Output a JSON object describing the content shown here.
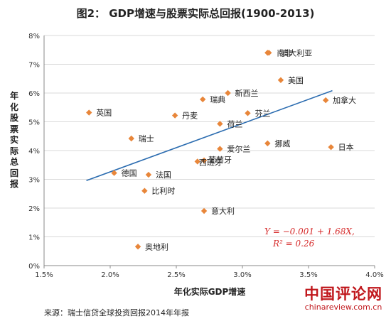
{
  "page": {
    "title": "图2： GDP增速与股票实际总回报(1900-2013)",
    "source": "来源：瑞士信贷全球投资回报2014年年报",
    "watermark_main": "中国评论网",
    "watermark_sub": "chinareview.com.cn"
  },
  "chart_data": {
    "type": "scatter",
    "title": "图2： GDP增速与股票实际总回报(1900-2013)",
    "xlabel": "年化实际GDP增速",
    "ylabel": "年化股票实际总回报",
    "xlim": [
      0.015,
      0.04
    ],
    "ylim": [
      0,
      0.08
    ],
    "x_ticks": [
      "1.5%",
      "2.0%",
      "2.5%",
      "3.0%",
      "3.5%",
      "4.0%"
    ],
    "y_ticks": [
      "0%",
      "1%",
      "2%",
      "3%",
      "4%",
      "5%",
      "6%",
      "7%",
      "8%"
    ],
    "points": [
      {
        "label": "南非",
        "x": 0.0319,
        "y": 0.074
      },
      {
        "label": "澳大利亚",
        "x": 0.032,
        "y": 0.074
      },
      {
        "label": "美国",
        "x": 0.0329,
        "y": 0.0645
      },
      {
        "label": "加拿大",
        "x": 0.0363,
        "y": 0.0575
      },
      {
        "label": "新西兰",
        "x": 0.0289,
        "y": 0.06
      },
      {
        "label": "瑞典",
        "x": 0.027,
        "y": 0.0578
      },
      {
        "label": "芬兰",
        "x": 0.0304,
        "y": 0.053
      },
      {
        "label": "英国",
        "x": 0.0184,
        "y": 0.0532
      },
      {
        "label": "丹麦",
        "x": 0.0249,
        "y": 0.0522
      },
      {
        "label": "荷兰",
        "x": 0.0283,
        "y": 0.0493
      },
      {
        "label": "瑞士",
        "x": 0.0216,
        "y": 0.0442
      },
      {
        "label": "挪威",
        "x": 0.0319,
        "y": 0.0425
      },
      {
        "label": "日本",
        "x": 0.0367,
        "y": 0.0412
      },
      {
        "label": "爱尔兰",
        "x": 0.0283,
        "y": 0.0406
      },
      {
        "label": "西班牙",
        "x": 0.0266,
        "y": 0.0362
      },
      {
        "label": "葡萄牙",
        "x": 0.0271,
        "y": 0.0366
      },
      {
        "label": "德国",
        "x": 0.0203,
        "y": 0.0322
      },
      {
        "label": "法国",
        "x": 0.0229,
        "y": 0.0316
      },
      {
        "label": "比利时",
        "x": 0.0226,
        "y": 0.026
      },
      {
        "label": "意大利",
        "x": 0.0271,
        "y": 0.019
      },
      {
        "label": "奥地利",
        "x": 0.0221,
        "y": 0.0066
      }
    ],
    "trendline": {
      "intercept": -0.001,
      "slope": 1.68,
      "x_range": [
        0.0182,
        0.0368
      ],
      "equation_line1": "Y = −0.001 + 1.68X,",
      "equation_line2": "R² = 0.26"
    },
    "grid": "horizontal",
    "marker_color": "#e8863a",
    "trend_color": "#2b6cb0",
    "equation_color": "#d62b2b"
  }
}
